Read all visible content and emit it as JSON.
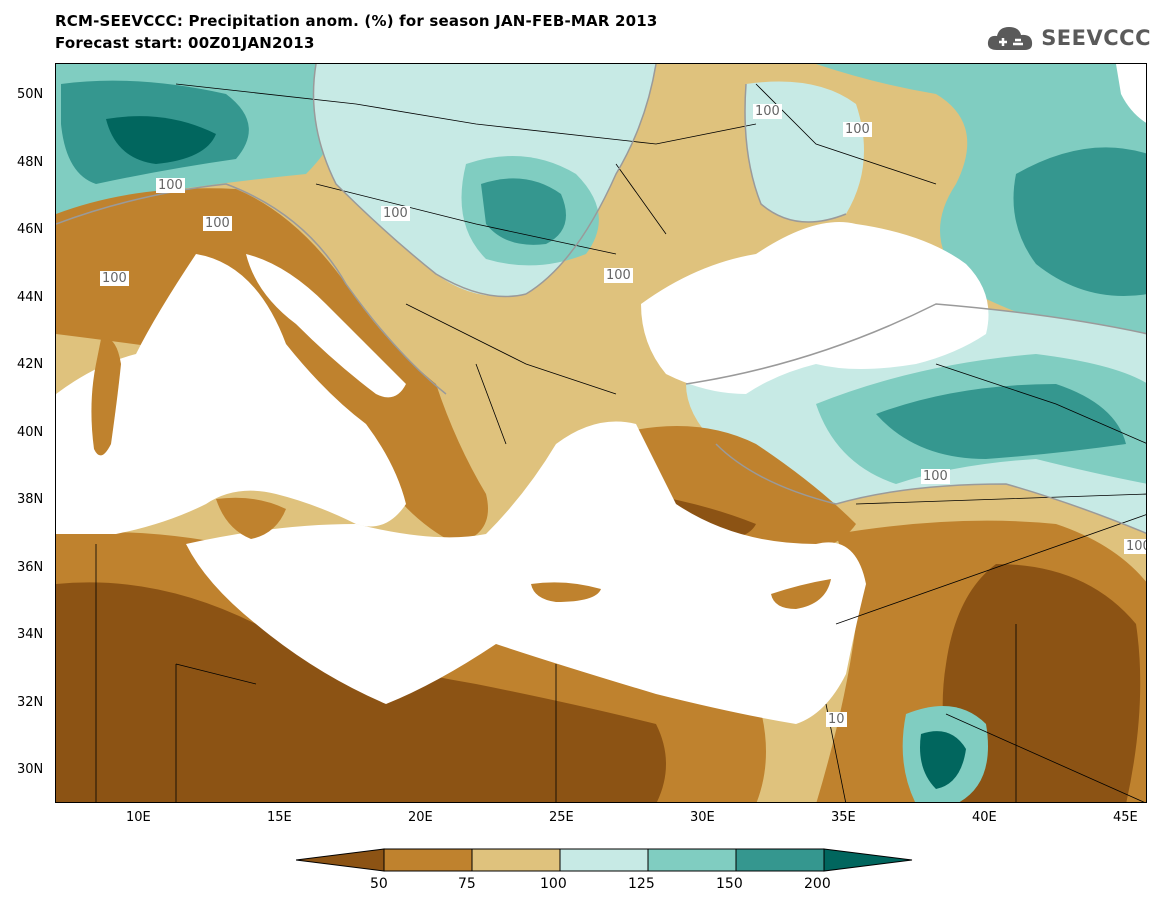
{
  "header": {
    "title_line1": "RCM-SEEVCCC: Precipitation anom. (%) for season JAN-FEB-MAR 2013",
    "title_line2": "Forecast start: 00Z01JAN2013",
    "logo_text": "SEEVCCC",
    "logo_icon": "cloud-logo-icon"
  },
  "map": {
    "lat_labels": [
      "50N",
      "48N",
      "46N",
      "44N",
      "42N",
      "40N",
      "38N",
      "36N",
      "34N",
      "32N",
      "30N"
    ],
    "lon_labels": [
      "10E",
      "15E",
      "20E",
      "25E",
      "30E",
      "35E",
      "40E",
      "45E"
    ],
    "contour_labels": [
      "100",
      "100",
      "100",
      "100",
      "100",
      "100",
      "100",
      "100",
      "100",
      "10"
    ]
  },
  "colorbar": {
    "levels": [
      "50",
      "75",
      "100",
      "125",
      "150",
      "200"
    ],
    "colors": [
      "#8c5314",
      "#bf822e",
      "#dfc27d",
      "#c7eae5",
      "#80cdc1",
      "#35978f",
      "#01665e"
    ]
  },
  "palette": {
    "land_mask": "#ffffff",
    "contour_line": "#9a9a9a",
    "border_line": "#000000"
  }
}
